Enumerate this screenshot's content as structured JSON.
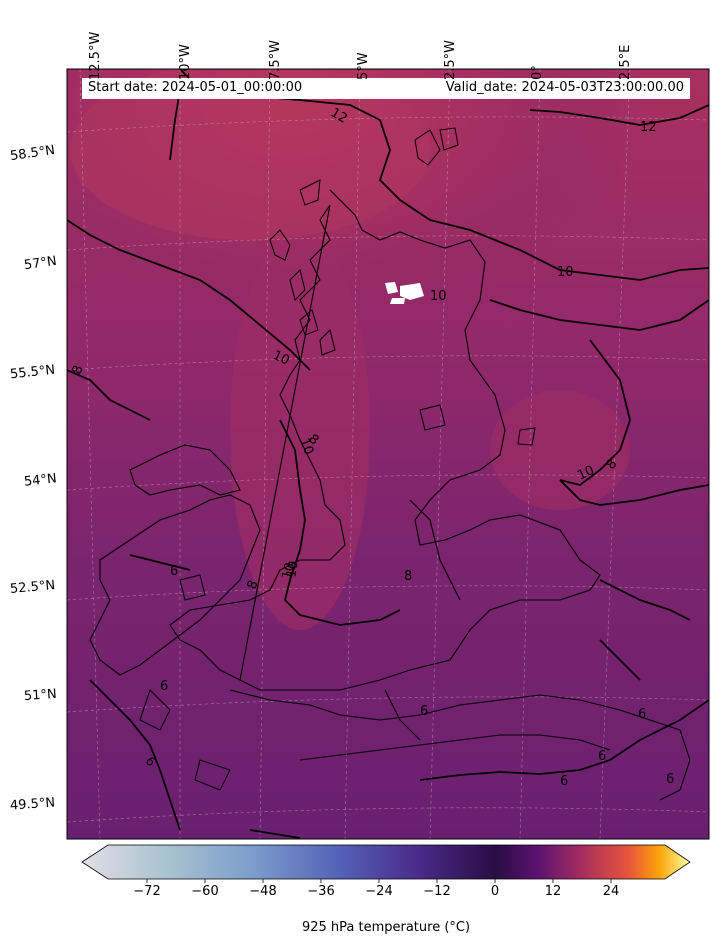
{
  "header": {
    "start_date": "Start date: 2024-05-01_00:00:00",
    "valid_date": "Valid_date: 2024-05-03T23:00:00.00"
  },
  "map": {
    "longitude_labels": [
      "12.5°W",
      "10°W",
      "7.5°W",
      "5°W",
      "2.5°W",
      "0°",
      "2.5°E"
    ],
    "latitude_labels": [
      "58.5°N",
      "57°N",
      "55.5°N",
      "54°N",
      "52.5°N",
      "51°N",
      "49.5°N"
    ],
    "contour_labels": [
      "12",
      "12",
      "10",
      "10",
      "10",
      "10",
      "10",
      "8",
      "8",
      "8",
      "8",
      "6",
      "6",
      "6",
      "6",
      "6",
      "6",
      "6",
      "6",
      "8",
      "10",
      "10"
    ],
    "colors": {
      "warm_field": "#a9305f",
      "mid_field": "#8b2a68",
      "cool_field": "#6c2170",
      "contour": "#000000",
      "graticule": "#c9a9c0"
    }
  },
  "colorbar": {
    "ticks": [
      "−72",
      "−60",
      "−48",
      "−36",
      "−24",
      "−12",
      "0",
      "12",
      "24"
    ],
    "label": "925 hPa temperature ($^\\circ$C)",
    "label_rendered": "925 hPa temperature (°C)",
    "colormap_stops": [
      "#e3dde6",
      "#8fb6c6",
      "#5b7cc4",
      "#5a3fa1",
      "#2c0f4a",
      "#4d0a6a",
      "#a1296a",
      "#e24e3a",
      "#fba40a",
      "#fcffa4"
    ]
  }
}
